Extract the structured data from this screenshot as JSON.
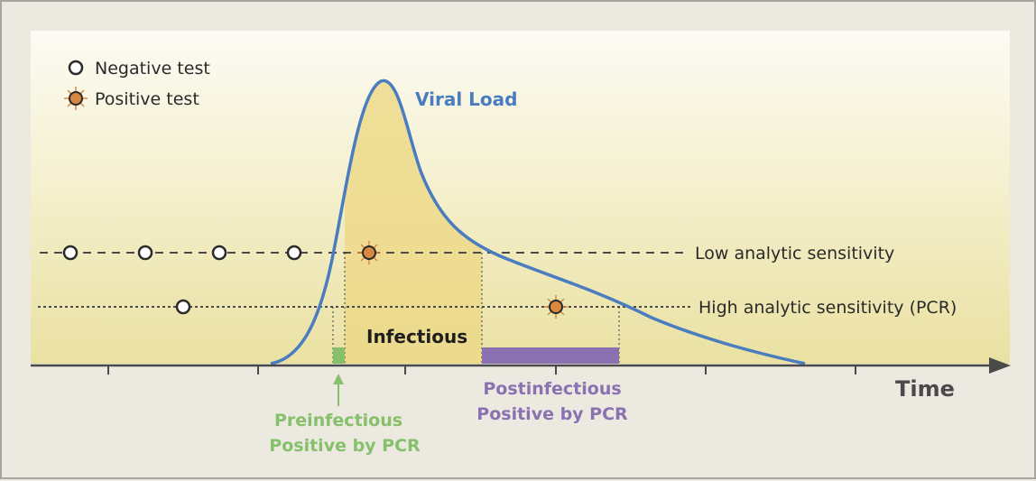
{
  "legend": {
    "negative": "Negative test",
    "positive": "Positive test"
  },
  "curve": {
    "label": "Viral Load"
  },
  "thresholds": {
    "low": "Low analytic sensitivity",
    "high": "High analytic sensitivity (PCR)"
  },
  "phases": {
    "infectious": "Infectious",
    "preinfectious_line1": "Preinfectious",
    "preinfectious_line2": "Positive by PCR",
    "postinfectious_line1": "Postinfectious",
    "postinfectious_line2": "Positive by PCR"
  },
  "axis": {
    "x_label": "Time"
  },
  "colors": {
    "curve": "#4a7cc0",
    "infectious_fill": "#ecd98a",
    "preinfectious": "#86c06a",
    "postinfectious": "#8a72b2",
    "positive_marker": "#d9893d",
    "background_top": "#fbfaf3",
    "background_bottom": "#ebe3a6"
  }
}
